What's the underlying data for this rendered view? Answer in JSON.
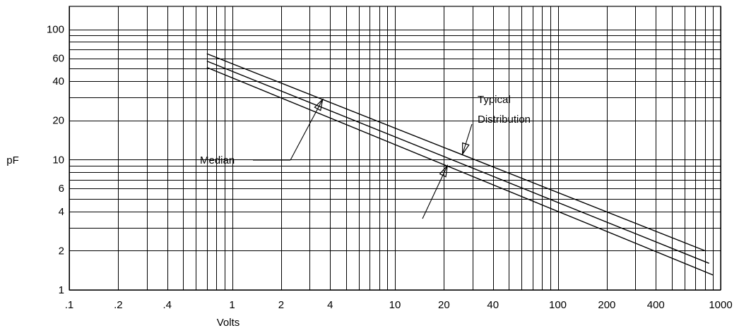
{
  "chart_data": {
    "type": "line",
    "title": "",
    "xlabel": "Volts",
    "ylabel": "pF",
    "x_scale": "log",
    "y_scale": "log",
    "xlim": [
      0.1,
      1000
    ],
    "ylim": [
      1,
      150
    ],
    "grid": true,
    "x_ticks": [
      {
        "value": 0.1,
        "label": ".1"
      },
      {
        "value": 0.2,
        "label": ".2"
      },
      {
        "value": 0.4,
        "label": ".4"
      },
      {
        "value": 1,
        "label": "1"
      },
      {
        "value": 2,
        "label": "2"
      },
      {
        "value": 4,
        "label": "4"
      },
      {
        "value": 10,
        "label": "10"
      },
      {
        "value": 20,
        "label": "20"
      },
      {
        "value": 40,
        "label": "40"
      },
      {
        "value": 100,
        "label": "100"
      },
      {
        "value": 200,
        "label": "200"
      },
      {
        "value": 400,
        "label": "400"
      },
      {
        "value": 1000,
        "label": "1000"
      }
    ],
    "y_ticks": [
      {
        "value": 1,
        "label": "1"
      },
      {
        "value": 2,
        "label": "2"
      },
      {
        "value": 4,
        "label": "4"
      },
      {
        "value": 6,
        "label": "6"
      },
      {
        "value": 10,
        "label": "10"
      },
      {
        "value": 20,
        "label": "20"
      },
      {
        "value": 40,
        "label": "40"
      },
      {
        "value": 60,
        "label": "60"
      },
      {
        "value": 100,
        "label": "100"
      }
    ],
    "x_gridlines": [
      0.1,
      0.2,
      0.3,
      0.4,
      0.5,
      0.6,
      0.7,
      0.8,
      0.9,
      1,
      2,
      3,
      4,
      5,
      6,
      7,
      8,
      9,
      10,
      20,
      30,
      40,
      50,
      60,
      70,
      80,
      90,
      100,
      200,
      300,
      400,
      500,
      600,
      700,
      800,
      900,
      1000
    ],
    "y_gridlines": [
      1,
      2,
      3,
      4,
      5,
      6,
      7,
      8,
      9,
      10,
      20,
      30,
      40,
      50,
      60,
      70,
      80,
      90,
      100
    ],
    "series": [
      {
        "x": [
          0.7,
          800
        ],
        "y": [
          65,
          2.0
        ]
      },
      {
        "x": [
          0.7,
          850
        ],
        "y": [
          57,
          1.6
        ]
      },
      {
        "x": [
          0.7,
          900
        ],
        "y": [
          51,
          1.3
        ]
      }
    ],
    "annotations": [
      {
        "lines": [
          "Median"
        ],
        "target": {
          "x": 3.6,
          "y": 29
        }
      },
      {
        "lines": [
          "Typical",
          "Distribution"
        ],
        "target": {
          "x": 26,
          "y": 11
        }
      },
      {
        "lines": [],
        "target": {
          "x": 21,
          "y": 9
        }
      }
    ]
  }
}
